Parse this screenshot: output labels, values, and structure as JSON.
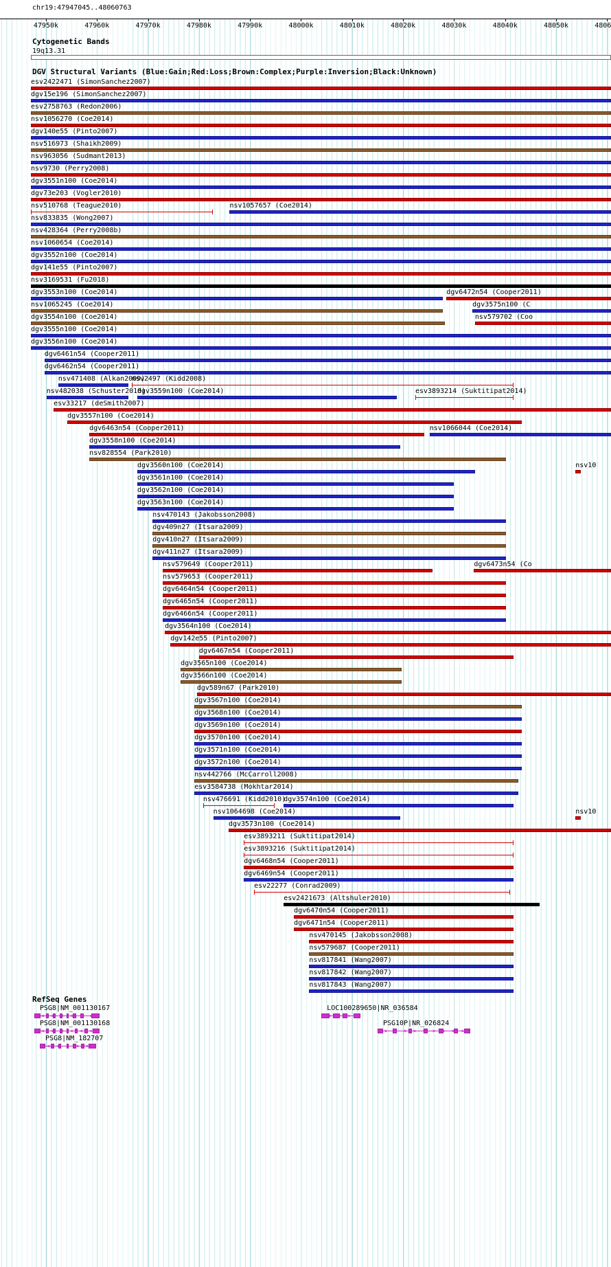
{
  "titles": {
    "cytobands": "Cytogenetic Bands",
    "dgv": "DGV Structural Variants (Blue:Gain;Red:Loss;Brown:Complex;Purple:Inversion;Black:Unknown)",
    "refseq": "RefSeq Genes"
  },
  "chart_data": {
    "type": "table",
    "title": "DGV Structural Variants",
    "region": {
      "label": "chr19:47947045..48060763",
      "chrom": "chr19",
      "start": 47947045,
      "end": 48060763
    },
    "cytoband": {
      "name": "19q13.31"
    },
    "legend": {
      "gain": "#1f23c8",
      "loss": "#d40000",
      "complex": "#8b5a2b",
      "inversion": "#7a0e7a",
      "unknown": "#000000"
    },
    "gene_color": "#cc2fcc",
    "grid_color": "#cdeded",
    "ruler_ticks": [
      {
        "label": "47950k",
        "bp": 47950000
      },
      {
        "label": "47960k",
        "bp": 47960000
      },
      {
        "label": "47970k",
        "bp": 47970000
      },
      {
        "label": "47980k",
        "bp": 47980000
      },
      {
        "label": "47990k",
        "bp": 47990000
      },
      {
        "label": "48000k",
        "bp": 48000000
      },
      {
        "label": "48010k",
        "bp": 48010000
      },
      {
        "label": "48020k",
        "bp": 48020000
      },
      {
        "label": "48030k",
        "bp": 48030000
      },
      {
        "label": "48040k",
        "bp": 48040000
      },
      {
        "label": "48050k",
        "bp": 48050000
      },
      {
        "label": "48060k",
        "bp": 48060000
      }
    ],
    "dgv_rows": [
      [
        {
          "label": "esv2422471 (SimonSanchez2007)",
          "type": "loss",
          "start": 47947045,
          "end": 48060763
        }
      ],
      [
        {
          "label": "dgv15e196 (SimonSanchez2007)",
          "type": "gain",
          "start": 47947045,
          "end": 48060763
        }
      ],
      [
        {
          "label": "esv2758763 (Redon2006)",
          "type": "complex",
          "start": 47947045,
          "end": 48060763
        }
      ],
      [
        {
          "label": "nsv1056270 (Coe2014)",
          "type": "loss",
          "start": 47947045,
          "end": 48060763
        }
      ],
      [
        {
          "label": "dgv140e55 (Pinto2007)",
          "type": "gain",
          "start": 47947045,
          "end": 48060763
        }
      ],
      [
        {
          "label": "nsv516973 (Shaikh2009)",
          "type": "complex",
          "start": 47947045,
          "end": 48060763
        }
      ],
      [
        {
          "label": "nsv963056 (Sudmant2013)",
          "type": "gain",
          "start": 47947045,
          "end": 48060763
        }
      ],
      [
        {
          "label": "nsv9730 (Perry2008)",
          "type": "loss",
          "start": 47947045,
          "end": 48060763
        }
      ],
      [
        {
          "label": "dgv3551n100 (Coe2014)",
          "type": "gain",
          "start": 47947045,
          "end": 48060763
        }
      ],
      [
        {
          "label": "dgv73e203 (Vogler2010)",
          "type": "loss",
          "start": 47947045,
          "end": 48060763
        }
      ],
      [
        {
          "label": "nsv510768 (Teague2010)",
          "type": "loss",
          "glyph": "line",
          "start": 47947045,
          "end": 47982700
        },
        {
          "label": "nsv1057657 (Coe2014)",
          "type": "gain",
          "start": 47986000,
          "end": 48060763
        }
      ],
      [
        {
          "label": "nsv833835 (Wong2007)",
          "type": "gain",
          "start": 47947045,
          "end": 48060763
        }
      ],
      [
        {
          "label": "nsv428364 (Perry2008b)",
          "type": "complex",
          "start": 47947045,
          "end": 48060763
        }
      ],
      [
        {
          "label": "nsv1060654 (Coe2014)",
          "type": "gain",
          "start": 47947045,
          "end": 48060763
        }
      ],
      [
        {
          "label": "dgv3552n100 (Coe2014)",
          "type": "gain",
          "start": 47947045,
          "end": 48060763
        }
      ],
      [
        {
          "label": "dgv141e55 (Pinto2007)",
          "type": "loss",
          "start": 47947045,
          "end": 48060763
        }
      ],
      [
        {
          "label": "nsv3169531 (Fu2018)",
          "type": "unknown",
          "start": 47947045,
          "end": 48060763
        }
      ],
      [
        {
          "label": "dgv3553n100 (Coe2014)",
          "type": "gain",
          "start": 47947045,
          "end": 48027800
        },
        {
          "label": "dgv6472n54 (Cooper2011)",
          "type": "loss",
          "start": 48028500,
          "end": 48060763
        }
      ],
      [
        {
          "label": "nsv1065245 (Coe2014)",
          "type": "complex",
          "start": 47947045,
          "end": 48027800
        },
        {
          "label": "dgv3575n100 (C",
          "type": "gain",
          "start": 48033600,
          "end": 48060763
        }
      ],
      [
        {
          "label": "dgv3554n100 (Coe2014)",
          "type": "complex",
          "start": 47947045,
          "end": 48028200
        },
        {
          "label": "nsv579702 (Coo",
          "type": "loss",
          "start": 48034100,
          "end": 48060763
        }
      ],
      [
        {
          "label": "dgv3555n100 (Coe2014)",
          "type": "gain",
          "start": 47947045,
          "end": 48060763
        }
      ],
      [
        {
          "label": "dgv3556n100 (Coe2014)",
          "type": "gain",
          "start": 47947045,
          "end": 48060763
        }
      ],
      [
        {
          "label": "dgv6461n54 (Cooper2011)",
          "type": "gain",
          "start": 47949700,
          "end": 48060763
        }
      ],
      [
        {
          "label": "dgv6462n54 (Cooper2011)",
          "type": "gain",
          "start": 47949700,
          "end": 48060763
        }
      ],
      [
        {
          "label": "nsv471408 (Alkan2009)",
          "type": "gain",
          "start": 47952400,
          "end": 47966200
        },
        {
          "label": "nsv2497 (Kidd2008)",
          "type": "loss",
          "glyph": "line",
          "start": 47966800,
          "end": 48041700
        }
      ],
      [
        {
          "label": "nsv482038 (Schuster2010)",
          "type": "gain",
          "start": 47950100,
          "end": 47966200
        },
        {
          "label": "dgv3559n100 (Coe2014)",
          "type": "gain",
          "start": 47967900,
          "end": 48018800
        },
        {
          "label": "esv3893214 (Suktitipat2014)",
          "type": "loss",
          "glyph": "line",
          "start": 48022400,
          "end": 48041700
        }
      ],
      [
        {
          "label": "esv33217 (deSmith2007)",
          "type": "loss",
          "start": 47951500,
          "end": 48060763
        }
      ],
      [
        {
          "label": "dgv3557n100 (Coe2014)",
          "type": "loss",
          "start": 47954200,
          "end": 48043300
        }
      ],
      [
        {
          "label": "dgv6463n54 (Cooper2011)",
          "type": "loss",
          "start": 47958500,
          "end": 48024200
        },
        {
          "label": "nsv1066044 (Coe2014)",
          "type": "gain",
          "start": 48025200,
          "end": 48060763
        }
      ],
      [
        {
          "label": "dgv3558n100 (Coe2014)",
          "type": "gain",
          "start": 47958500,
          "end": 48019500
        }
      ],
      [
        {
          "label": "nsv828554 (Park2010)",
          "type": "complex",
          "start": 47958500,
          "end": 48040200
        }
      ],
      [
        {
          "label": "dgv3560n100 (Coe2014)",
          "type": "gain",
          "start": 47967900,
          "end": 48034100
        },
        {
          "label": "nsv10",
          "type": "loss",
          "start": 48053800,
          "end": 48054800
        }
      ],
      [
        {
          "label": "dgv3561n100 (Coe2014)",
          "type": "gain",
          "start": 47967900,
          "end": 48029900
        }
      ],
      [
        {
          "label": "dgv3562n100 (Coe2014)",
          "type": "gain",
          "start": 47967900,
          "end": 48029900
        }
      ],
      [
        {
          "label": "dgv3563n100 (Coe2014)",
          "type": "gain",
          "start": 47967900,
          "end": 48029900
        }
      ],
      [
        {
          "label": "nsv470143 (Jakobsson2008)",
          "type": "gain",
          "start": 47970900,
          "end": 48040200
        }
      ],
      [
        {
          "label": "dgv409n27 (Itsara2009)",
          "type": "complex",
          "start": 47970900,
          "end": 48040200
        }
      ],
      [
        {
          "label": "dgv410n27 (Itsara2009)",
          "type": "complex",
          "start": 47970900,
          "end": 48040200
        }
      ],
      [
        {
          "label": "dgv411n27 (Itsara2009)",
          "type": "gain",
          "start": 47970900,
          "end": 48040200
        }
      ],
      [
        {
          "label": "nsv579649 (Cooper2011)",
          "type": "loss",
          "start": 47972900,
          "end": 48025800
        },
        {
          "label": "dgv6473n54 (Co",
          "type": "loss",
          "start": 48033900,
          "end": 48060763
        }
      ],
      [
        {
          "label": "nsv579653 (Cooper2011)",
          "type": "loss",
          "start": 47972900,
          "end": 48040200
        }
      ],
      [
        {
          "label": "dgv6464n54 (Cooper2011)",
          "type": "loss",
          "start": 47972900,
          "end": 48040200
        }
      ],
      [
        {
          "label": "dgv6465n54 (Cooper2011)",
          "type": "loss",
          "start": 47972900,
          "end": 48040200
        }
      ],
      [
        {
          "label": "dgv6466n54 (Cooper2011)",
          "type": "gain",
          "start": 47972900,
          "end": 48040200
        }
      ],
      [
        {
          "label": "dgv3564n100 (Coe2014)",
          "type": "loss",
          "start": 47973300,
          "end": 48060763
        }
      ],
      [
        {
          "label": "dgv142e55 (Pinto2007)",
          "type": "loss",
          "start": 47974400,
          "end": 48060763
        }
      ],
      [
        {
          "label": "dgv6467n54 (Cooper2011)",
          "type": "loss",
          "start": 47980000,
          "end": 48041700
        }
      ],
      [
        {
          "label": "dgv3565n100 (Coe2014)",
          "type": "complex",
          "start": 47976400,
          "end": 48019700
        }
      ],
      [
        {
          "label": "dgv3566n100 (Coe2014)",
          "type": "complex",
          "start": 47976400,
          "end": 48019700
        }
      ],
      [
        {
          "label": "dgv589n67 (Park2010)",
          "type": "loss",
          "start": 47979600,
          "end": 48060763
        }
      ],
      [
        {
          "label": "dgv3567n100 (Coe2014)",
          "type": "complex",
          "start": 47979100,
          "end": 48043300
        }
      ],
      [
        {
          "label": "dgv3568n100 (Coe2014)",
          "type": "gain",
          "start": 47979100,
          "end": 48043300
        }
      ],
      [
        {
          "label": "dgv3569n100 (Coe2014)",
          "type": "loss",
          "start": 47979100,
          "end": 48043300
        }
      ],
      [
        {
          "label": "dgv3570n100 (Coe2014)",
          "type": "gain",
          "start": 47979100,
          "end": 48043300
        }
      ],
      [
        {
          "label": "dgv3571n100 (Coe2014)",
          "type": "gain",
          "start": 47979100,
          "end": 48043300
        }
      ],
      [
        {
          "label": "dgv3572n100 (Coe2014)",
          "type": "gain",
          "start": 47979100,
          "end": 48043300
        }
      ],
      [
        {
          "label": "nsv442766 (McCarroll2008)",
          "type": "complex",
          "start": 47979100,
          "end": 48042600
        }
      ],
      [
        {
          "label": "esv3584738 (Mokhtar2014)",
          "type": "gain",
          "start": 47979100,
          "end": 48042600
        }
      ],
      [
        {
          "label": "nsv476691 (Kidd2010)",
          "type": "loss",
          "glyph": "line",
          "start": 47980800,
          "end": 47994800
        },
        {
          "label": "dgv3574n100 (Coe2014)",
          "type": "gain",
          "start": 47996600,
          "end": 48041700
        }
      ],
      [
        {
          "label": "nsv1064698 (Coe2014)",
          "type": "gain",
          "start": 47982800,
          "end": 48019500
        },
        {
          "label": "nsv10",
          "type": "loss",
          "start": 48053800,
          "end": 48054800
        }
      ],
      [
        {
          "label": "dgv3573n100 (Coe2014)",
          "type": "loss",
          "start": 47985800,
          "end": 48060763
        }
      ],
      [
        {
          "label": "esv3893211 (Suktitipat2014)",
          "type": "loss",
          "glyph": "line",
          "start": 47988800,
          "end": 48041700
        }
      ],
      [
        {
          "label": "esv3893216 (Suktitipat2014)",
          "type": "loss",
          "glyph": "line",
          "start": 47988800,
          "end": 48041700
        }
      ],
      [
        {
          "label": "dgv6468n54 (Cooper2011)",
          "type": "loss",
          "start": 47988800,
          "end": 48041700
        }
      ],
      [
        {
          "label": "dgv6469n54 (Cooper2011)",
          "type": "gain",
          "start": 47988800,
          "end": 48041700
        }
      ],
      [
        {
          "label": "esv22277 (Conrad2009)",
          "type": "loss",
          "glyph": "line",
          "start": 47990800,
          "end": 48041000
        }
      ],
      [
        {
          "label": "esv2421673 (Altshuler2010)",
          "type": "unknown",
          "start": 47996600,
          "end": 48046800
        }
      ],
      [
        {
          "label": "dgv6470n54 (Cooper2011)",
          "type": "loss",
          "start": 47998600,
          "end": 48041700
        }
      ],
      [
        {
          "label": "dgv6471n54 (Cooper2011)",
          "type": "loss",
          "start": 47998600,
          "end": 48041700
        }
      ],
      [
        {
          "label": "nsv470145 (Jakobsson2008)",
          "type": "loss",
          "start": 48001600,
          "end": 48041700
        }
      ],
      [
        {
          "label": "nsv579687 (Cooper2011)",
          "type": "complex",
          "start": 48001600,
          "end": 48041700
        }
      ],
      [
        {
          "label": "nsv817841 (Wang2007)",
          "type": "gain",
          "start": 48001600,
          "end": 48041700
        }
      ],
      [
        {
          "label": "nsv817842 (Wang2007)",
          "type": "gain",
          "start": 48001600,
          "end": 48041700
        }
      ],
      [
        {
          "label": "nsv817843 (Wang2007)",
          "type": "gain",
          "start": 48001600,
          "end": 48041700
        }
      ]
    ],
    "refseq_rows": [
      [
        {
          "label": "PSG8|NM_001130167",
          "strand": "<",
          "start": 47947700,
          "end": 47960500,
          "exons": [
            [
              47947700,
              47948900
            ],
            [
              47950000,
              47950600
            ],
            [
              47951300,
              47951900
            ],
            [
              47952700,
              47953200
            ],
            [
              47954000,
              47954500
            ],
            [
              47955300,
              47955900
            ],
            [
              47956800,
              47957400
            ],
            [
              47958900,
              47960500
            ]
          ]
        },
        {
          "label": "LOC100289650|NR_036584",
          "strand": ">",
          "start": 48004000,
          "end": 48011600,
          "exons": [
            [
              48004000,
              48005600
            ],
            [
              48006300,
              48007600
            ],
            [
              48008100,
              48009100
            ],
            [
              48010300,
              48011600
            ]
          ]
        }
      ],
      [
        {
          "label": "PSG8|NM_001130168",
          "strand": "<",
          "start": 47947700,
          "end": 47960500,
          "exons": [
            [
              47947700,
              47948900
            ],
            [
              47950000,
              47950600
            ],
            [
              47951300,
              47951900
            ],
            [
              47952700,
              47953200
            ],
            [
              47954000,
              47954500
            ],
            [
              47955600,
              47956200
            ],
            [
              47957600,
              47958200
            ],
            [
              47959200,
              47960500
            ]
          ]
        },
        {
          "label": "PSG10P|NR_026824",
          "strand": ">",
          "start": 48015000,
          "end": 48033200,
          "exons": [
            [
              48015000,
              48016100
            ],
            [
              48018000,
              48018800
            ],
            [
              48021000,
              48021800
            ],
            [
              48024000,
              48024800
            ],
            [
              48027000,
              48027900
            ],
            [
              48030000,
              48030700
            ],
            [
              48032000,
              48033200
            ]
          ]
        }
      ],
      [
        {
          "label": "PSG8|NM_182707",
          "strand": "<",
          "start": 47948800,
          "end": 47959800,
          "exons": [
            [
              47948800,
              47949900
            ],
            [
              47951000,
              47951600
            ],
            [
              47952400,
              47953000
            ],
            [
              47954000,
              47954500
            ],
            [
              47955300,
              47955900
            ],
            [
              47956900,
              47957500
            ],
            [
              47958400,
              47959800
            ]
          ]
        }
      ]
    ]
  }
}
